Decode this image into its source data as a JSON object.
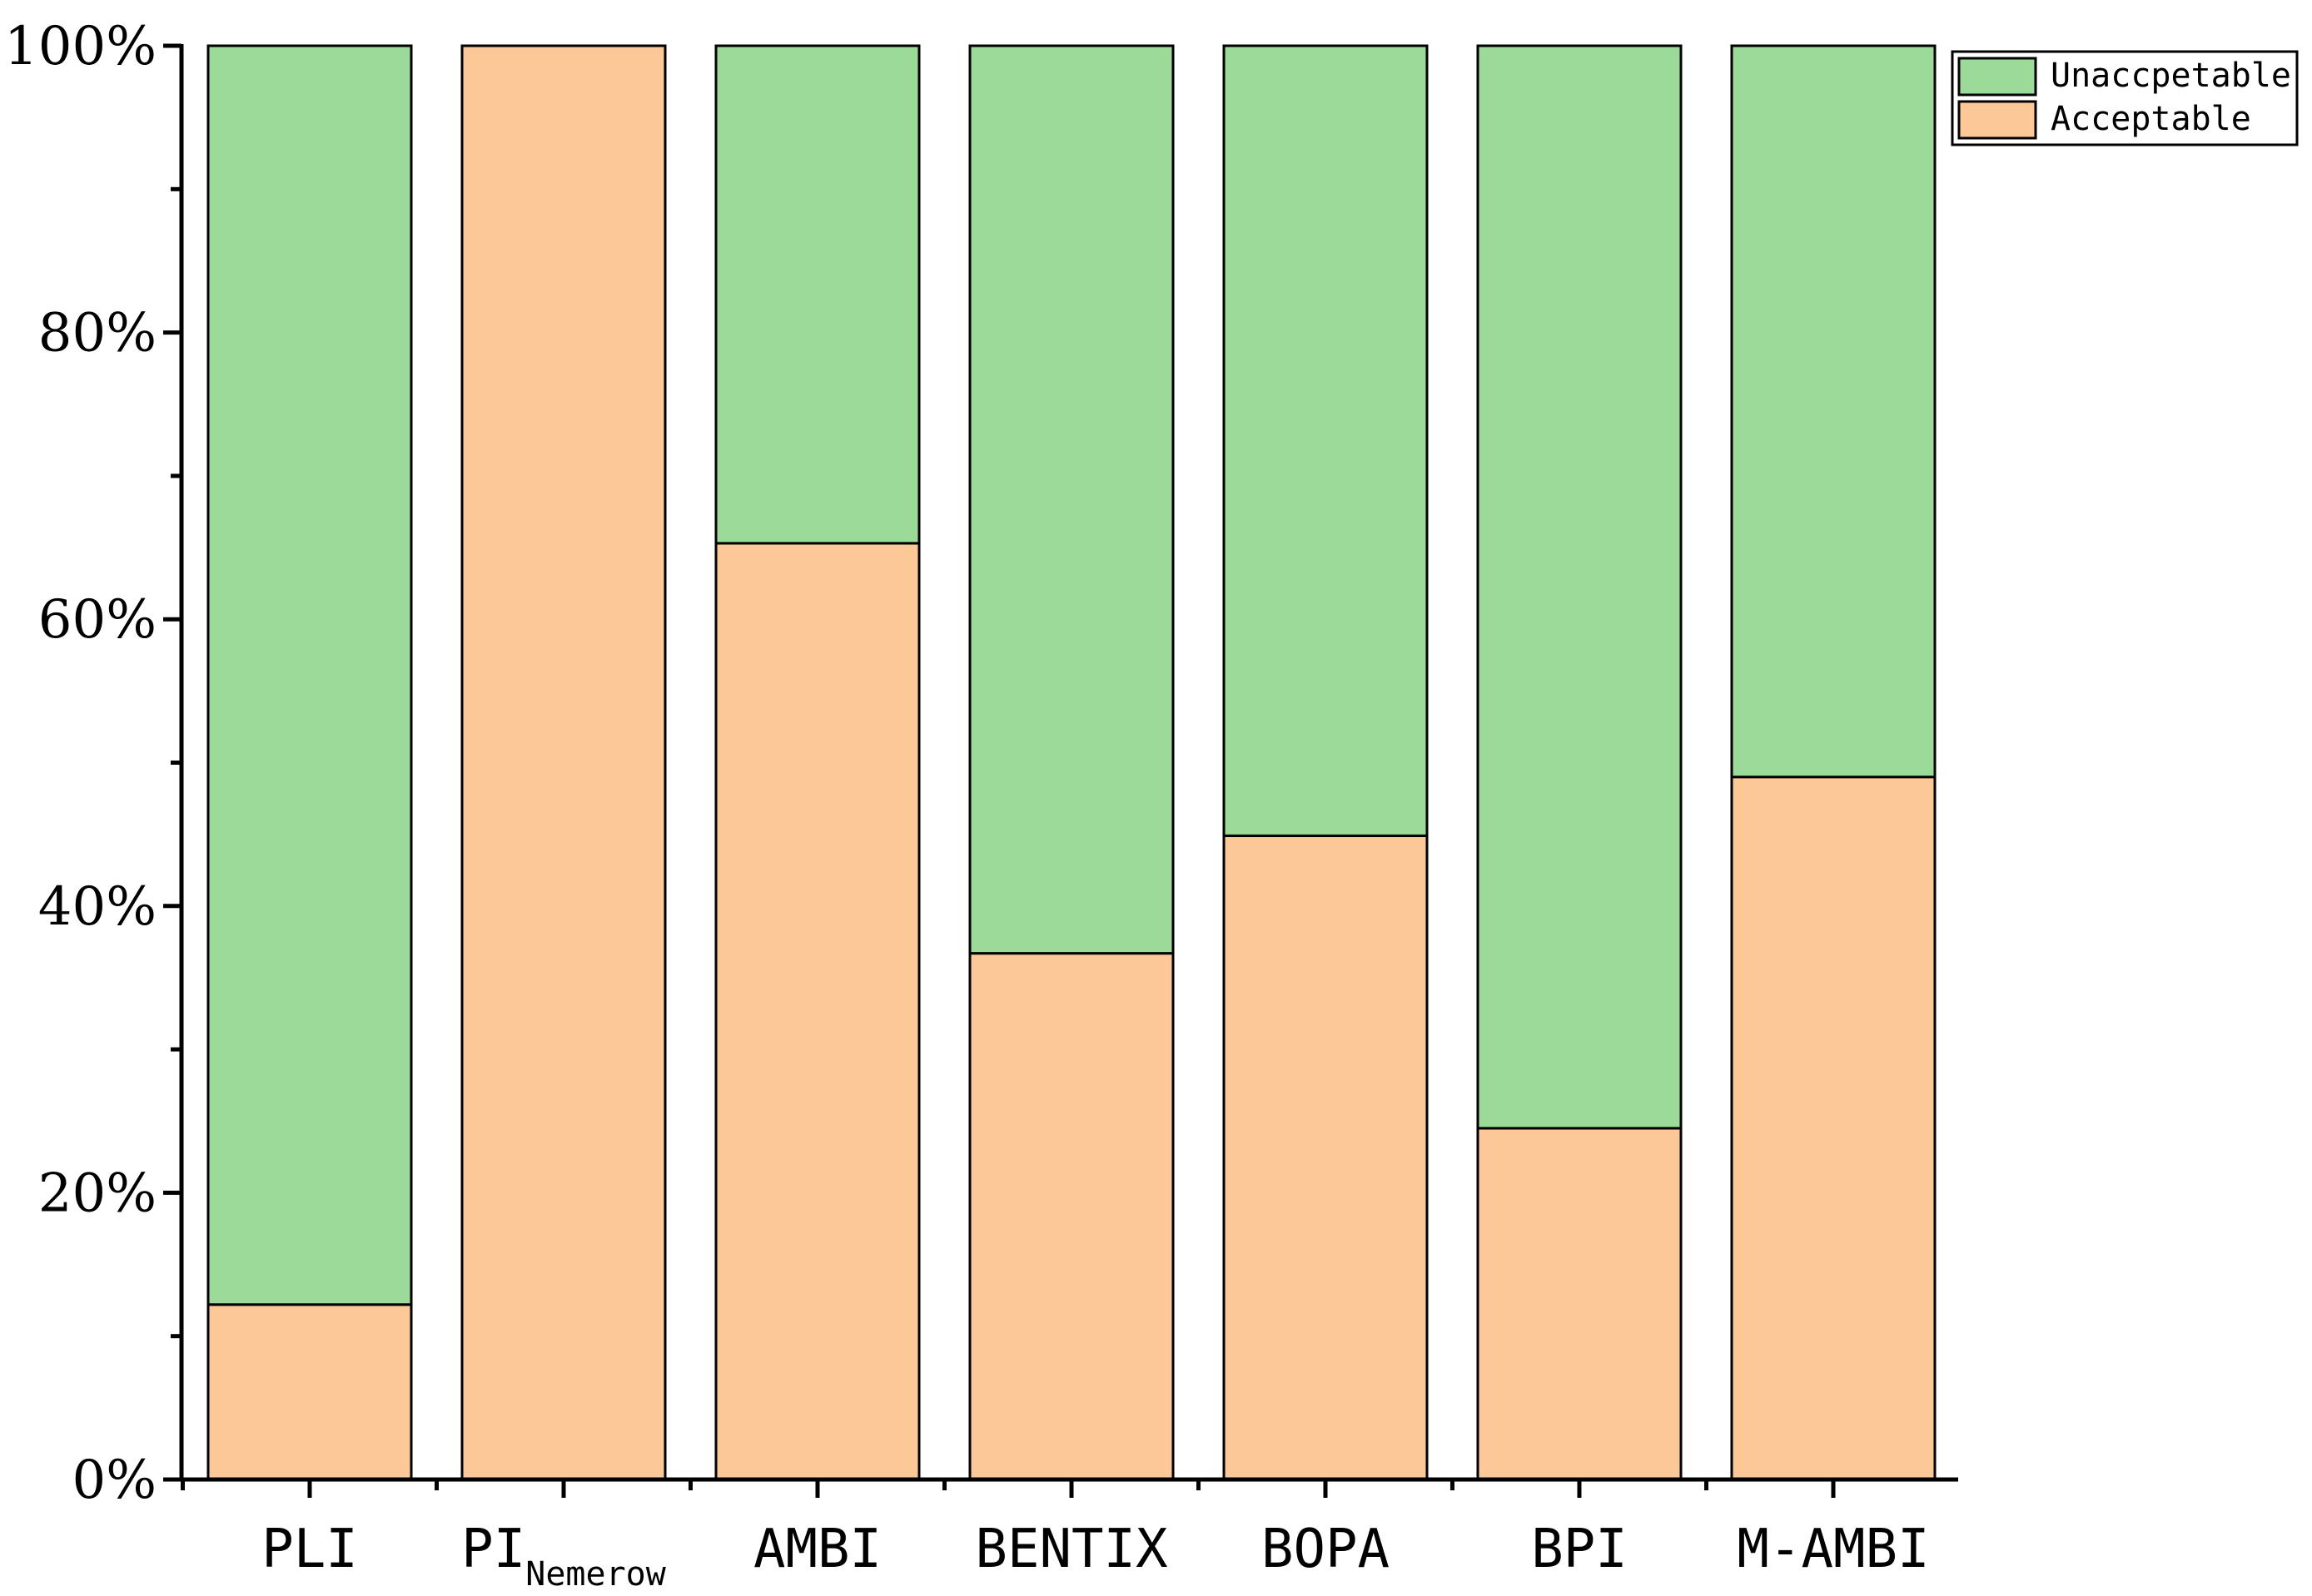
{
  "chart_data": {
    "type": "bar",
    "stacked": true,
    "categories": [
      "PLI",
      "PI_Nemerow",
      "AMBI",
      "BENTIX",
      "BOPA",
      "BPI",
      "M-AMBI"
    ],
    "category_labels": [
      {
        "main": "PLI",
        "sub": ""
      },
      {
        "main": "PI",
        "sub": "Nemerow"
      },
      {
        "main": "AMBI",
        "sub": ""
      },
      {
        "main": "BENTIX",
        "sub": ""
      },
      {
        "main": "BOPA",
        "sub": ""
      },
      {
        "main": "BPI",
        "sub": ""
      },
      {
        "main": "M-AMBI",
        "sub": ""
      }
    ],
    "series": [
      {
        "name": "Acceptable",
        "color": "#FDC897",
        "values": [
          12.2,
          100,
          65.3,
          36.7,
          44.9,
          24.5,
          49.0
        ]
      },
      {
        "name": "Unaccpetable",
        "color": "#9CDA9A",
        "values": [
          87.8,
          0,
          34.7,
          63.3,
          55.1,
          75.5,
          51.0
        ]
      }
    ],
    "ylim": [
      0,
      100
    ],
    "y_ticks": [
      0,
      20,
      40,
      60,
      80,
      100
    ],
    "y_tick_labels": [
      "0%",
      "20%",
      "40%",
      "60%",
      "80%",
      "100%"
    ],
    "title": "",
    "xlabel": "",
    "ylabel": "",
    "grid": false,
    "legend": {
      "position": "top-right",
      "entries": [
        "Unaccpetable",
        "Acceptable"
      ]
    }
  }
}
